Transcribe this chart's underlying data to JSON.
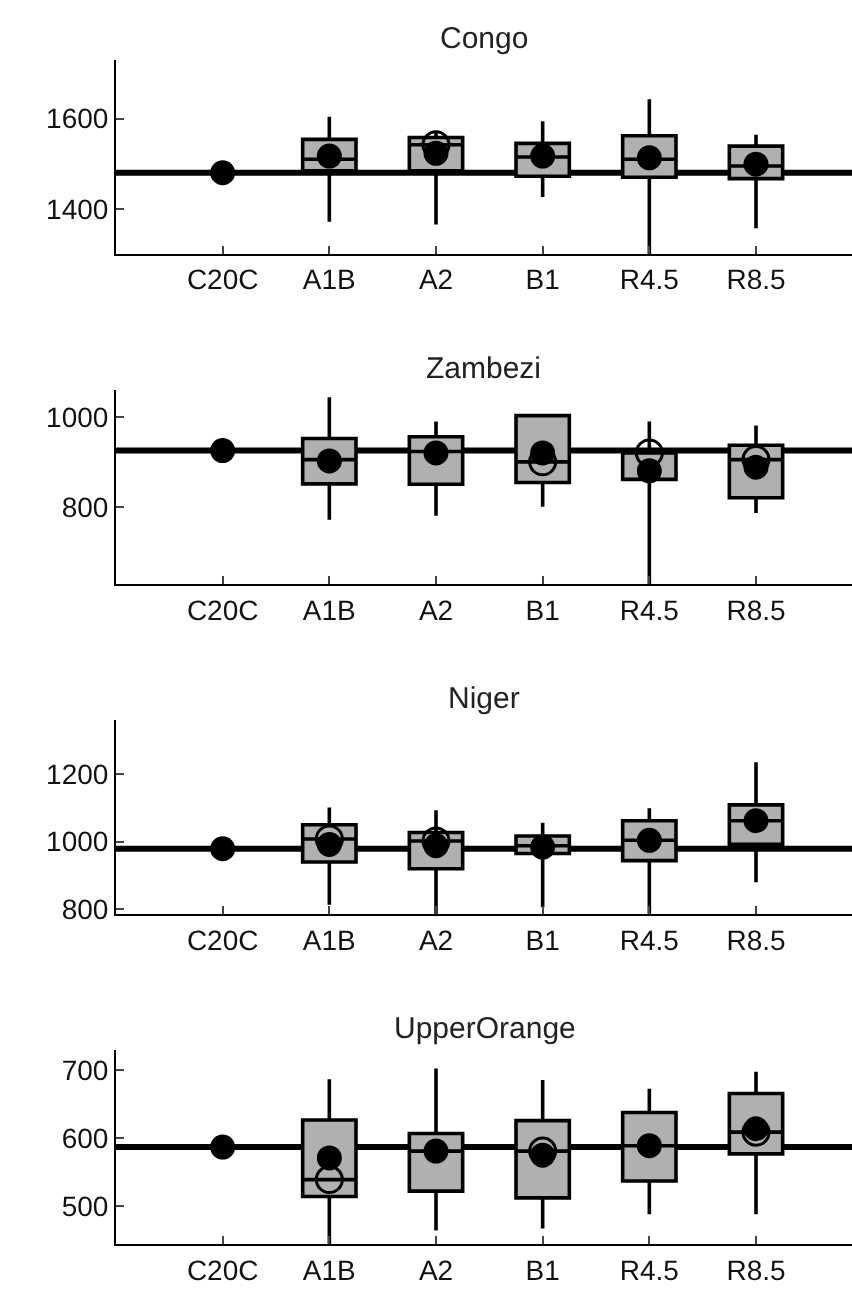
{
  "chart_data": [
    {
      "type": "box",
      "title": "Congo",
      "categories": [
        "C20C",
        "A1B",
        "A2",
        "B1",
        "R4.5",
        "R8.5"
      ],
      "ylim": [
        1300,
        1730
      ],
      "yticks": [
        1400,
        1600
      ],
      "ref_lines": [
        {
          "axis": "y",
          "value": 1480,
          "color": "#000000"
        }
      ],
      "series": [
        {
          "type": "box",
          "color": "#b0b0b0",
          "boxes": [
            null,
            {
              "low": 1371,
              "q1": 1484,
              "median": 1510,
              "q3": 1554,
              "high": 1604
            },
            {
              "low": 1365,
              "q1": 1484,
              "median": 1542,
              "q3": 1558,
              "high": 1568
            },
            {
              "low": 1426,
              "q1": 1472,
              "median": 1515,
              "q3": 1545,
              "high": 1594
            },
            {
              "low": 1300,
              "q1": 1470,
              "median": 1510,
              "q3": 1562,
              "high": 1643
            },
            {
              "low": 1357,
              "q1": 1467,
              "median": 1495,
              "q3": 1539,
              "high": 1564
            }
          ]
        },
        {
          "type": "scatter",
          "color": "#000000",
          "marker": "circle",
          "values": [
            null,
            null,
            1542,
            null,
            null,
            null
          ]
        },
        {
          "type": "scatter",
          "color": "#000000",
          "marker": "circle",
          "values": [
            1480,
            1517,
            1523,
            1517,
            1513,
            1499
          ]
        }
      ]
    },
    {
      "type": "box",
      "title": "Zambezi",
      "categories": [
        "C20C",
        "A1B",
        "A2",
        "B1",
        "R4.5",
        "R8.5"
      ],
      "ylim": [
        628,
        1060
      ],
      "yticks": [
        800,
        1000
      ],
      "ref_lines": [
        {
          "axis": "y",
          "value": 925,
          "color": "#000000"
        }
      ],
      "series": [
        {
          "type": "box",
          "color": "#b0b0b0",
          "boxes": [
            null,
            {
              "low": 771,
              "q1": 851,
              "median": 905,
              "q3": 952,
              "high": 1044
            },
            {
              "low": 780,
              "q1": 850,
              "median": 923,
              "q3": 956,
              "high": 990
            },
            {
              "low": 800,
              "q1": 854,
              "median": 900,
              "q3": 1003,
              "high": 1007
            },
            {
              "low": 628,
              "q1": 861,
              "median": 920,
              "q3": 927,
              "high": 990
            },
            {
              "low": 786,
              "q1": 820,
              "median": 905,
              "q3": 937,
              "high": 981
            }
          ]
        },
        {
          "type": "scatter",
          "color": "#000000",
          "marker": "circle",
          "values": [
            null,
            null,
            null,
            900,
            920,
            905
          ]
        },
        {
          "type": "scatter",
          "color": "#000000",
          "marker": "circle",
          "values": [
            925,
            902,
            920,
            920,
            880,
            888
          ]
        }
      ]
    },
    {
      "type": "box",
      "title": "Niger",
      "categories": [
        "C20C",
        "A1B",
        "A2",
        "B1",
        "R4.5",
        "R8.5"
      ],
      "ylim": [
        786,
        1360
      ],
      "yticks": [
        800,
        1000,
        1200
      ],
      "ref_lines": [
        {
          "axis": "y",
          "value": 979,
          "color": "#000000"
        }
      ],
      "series": [
        {
          "type": "box",
          "color": "#b0b0b0",
          "boxes": [
            null,
            {
              "low": 813,
              "q1": 940,
              "median": 1008,
              "q3": 1050,
              "high": 1101
            },
            {
              "low": 786,
              "q1": 920,
              "median": 1002,
              "q3": 1027,
              "high": 1093
            },
            {
              "low": 806,
              "q1": 965,
              "median": 988,
              "q3": 1017,
              "high": 1056
            },
            {
              "low": 786,
              "q1": 944,
              "median": 1004,
              "q3": 1062,
              "high": 1099
            },
            {
              "low": 880,
              "q1": 992,
              "median": 1062,
              "q3": 1109,
              "high": 1235
            }
          ]
        },
        {
          "type": "scatter",
          "color": "#000000",
          "marker": "circle",
          "values": [
            null,
            1008,
            1002,
            null,
            null,
            null
          ]
        },
        {
          "type": "scatter",
          "color": "#000000",
          "marker": "circle",
          "values": [
            979,
            992,
            988,
            984,
            1004,
            1062
          ]
        }
      ]
    },
    {
      "type": "box",
      "title": "UpperOrange",
      "categories": [
        "C20C",
        "A1B",
        "A2",
        "B1",
        "R4.5",
        "R8.5"
      ],
      "ylim": [
        444,
        730
      ],
      "yticks": [
        500,
        600,
        700
      ],
      "ref_lines": [
        {
          "axis": "y",
          "value": 587,
          "color": "#000000"
        }
      ],
      "series": [
        {
          "type": "box",
          "color": "#b0b0b0",
          "boxes": [
            null,
            {
              "low": 444,
              "q1": 514,
              "median": 539,
              "q3": 627,
              "high": 687
            },
            {
              "low": 464,
              "q1": 522,
              "median": 581,
              "q3": 607,
              "high": 703
            },
            {
              "low": 467,
              "q1": 512,
              "median": 581,
              "q3": 626,
              "high": 686
            },
            {
              "low": 488,
              "q1": 537,
              "median": 589,
              "q3": 638,
              "high": 673
            },
            {
              "low": 488,
              "q1": 577,
              "median": 609,
              "q3": 666,
              "high": 698
            }
          ]
        },
        {
          "type": "scatter",
          "color": "#000000",
          "marker": "circle",
          "values": [
            null,
            539,
            null,
            581,
            null,
            609
          ]
        },
        {
          "type": "scatter",
          "color": "#000000",
          "marker": "circle",
          "values": [
            587,
            571,
            581,
            575,
            589,
            614
          ]
        }
      ]
    }
  ]
}
